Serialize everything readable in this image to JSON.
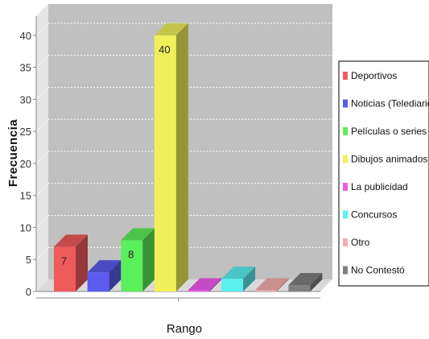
{
  "chart_data": {
    "type": "bar",
    "style": "3d",
    "xlabel": "Rango",
    "ylabel": "Frecuencia",
    "ylim": [
      0,
      43
    ],
    "yticks": [
      0,
      5,
      10,
      15,
      20,
      25,
      30,
      35,
      40
    ],
    "grid": true,
    "legend_position": "right",
    "series": [
      {
        "name": "Deportivos",
        "value": 7,
        "label": "7",
        "color": "#ef5b5b"
      },
      {
        "name": "Noticias (Telediario)",
        "value": 3,
        "label": "",
        "color": "#5b5bef"
      },
      {
        "name": "Películas o series",
        "value": 8,
        "label": "8",
        "color": "#5bef5b"
      },
      {
        "name": "Dibujos animados",
        "value": 40,
        "label": "40",
        "color": "#f0f05b"
      },
      {
        "name": "La publicidad",
        "value": 0,
        "label": "",
        "color": "#ef5bef"
      },
      {
        "name": "Concursos",
        "value": 2,
        "label": "",
        "color": "#5befef"
      },
      {
        "name": "Otro",
        "value": 0,
        "label": "",
        "color": "#f5b0b0"
      },
      {
        "name": "No Contestó",
        "value": 1,
        "label": "",
        "color": "#808080"
      }
    ]
  }
}
